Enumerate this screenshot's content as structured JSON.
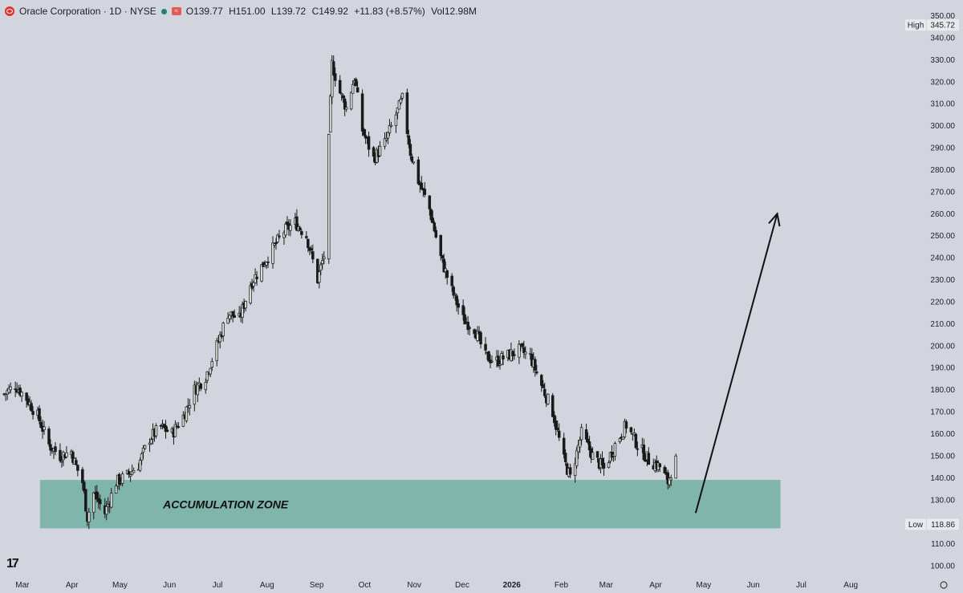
{
  "header": {
    "symbol_label": "Oracle Corporation · 1D · NYSE",
    "open_key": "O",
    "open": "139.77",
    "high_key": "H",
    "high": "151.00",
    "low_key": "L",
    "low": "139.72",
    "close_key": "C",
    "close": "149.92",
    "change": "+11.83 (+8.57%)",
    "vol_key": "Vol",
    "volume": "12.98M"
  },
  "branding": {
    "logo_text": "17"
  },
  "chart_data": {
    "type": "candlestick",
    "title": "Oracle Corporation · 1D · NYSE",
    "ylim": [
      96,
      352
    ],
    "y_ticks": [
      100,
      110,
      120,
      130,
      140,
      150,
      160,
      170,
      180,
      190,
      200,
      210,
      220,
      230,
      240,
      250,
      260,
      270,
      280,
      290,
      300,
      310,
      320,
      330,
      340,
      350
    ],
    "y_tick_labels": [
      "100.00",
      "110.00",
      "120.00",
      "130.00",
      "140.00",
      "150.00",
      "160.00",
      "170.00",
      "180.00",
      "190.00",
      "200.00",
      "210.00",
      "220.00",
      "230.00",
      "240.00",
      "250.00",
      "260.00",
      "270.00",
      "280.00",
      "290.00",
      "300.00",
      "310.00",
      "320.00",
      "330.00",
      "340.00",
      "350.00"
    ],
    "x_range": [
      "2025-02-15",
      "2026-08-30"
    ],
    "x_ticks": [
      {
        "date": "2025-03-01",
        "label": "Mar"
      },
      {
        "date": "2025-04-01",
        "label": "Apr"
      },
      {
        "date": "2025-05-01",
        "label": "May"
      },
      {
        "date": "2025-06-01",
        "label": "Jun"
      },
      {
        "date": "2025-07-01",
        "label": "Jul"
      },
      {
        "date": "2025-08-01",
        "label": "Aug"
      },
      {
        "date": "2025-09-01",
        "label": "Sep"
      },
      {
        "date": "2025-10-01",
        "label": "Oct"
      },
      {
        "date": "2025-11-01",
        "label": "Nov"
      },
      {
        "date": "2025-12-01",
        "label": "Dec"
      },
      {
        "date": "2026-01-01",
        "label": "2026"
      },
      {
        "date": "2026-02-01",
        "label": "Feb"
      },
      {
        "date": "2026-03-01",
        "label": "Mar"
      },
      {
        "date": "2026-04-01",
        "label": "Apr"
      },
      {
        "date": "2026-05-01",
        "label": "May"
      },
      {
        "date": "2026-06-01",
        "label": "Jun"
      },
      {
        "date": "2026-07-01",
        "label": "Jul"
      },
      {
        "date": "2026-08-01",
        "label": "Aug"
      }
    ],
    "high_marker": {
      "label": "High",
      "value": 345.72,
      "value_label": "345.72"
    },
    "low_marker": {
      "label": "Low",
      "value": 118.86,
      "value_label": "118.86"
    },
    "zone": {
      "label": "ACCUMULATION ZONE",
      "y_low": 117,
      "y_high": 139,
      "x_start": "2025-03-12",
      "x_end": "2026-06-18",
      "color": "#7fb5aa"
    },
    "arrow": {
      "from": {
        "date": "2026-04-26",
        "value": 124
      },
      "to": {
        "date": "2026-06-16",
        "value": 260
      }
    },
    "candle_colors": {
      "up": "#d7ddd6",
      "down": "#1a1a1a"
    },
    "closes": [
      [
        "2025-02-17",
        178
      ],
      [
        "2025-02-24",
        182
      ],
      [
        "2025-03-03",
        176
      ],
      [
        "2025-03-10",
        168
      ],
      [
        "2025-03-17",
        155
      ],
      [
        "2025-03-24",
        150
      ],
      [
        "2025-03-31",
        152
      ],
      [
        "2025-04-02",
        147
      ],
      [
        "2025-04-07",
        138
      ],
      [
        "2025-04-10",
        122
      ],
      [
        "2025-04-14",
        133
      ],
      [
        "2025-04-21",
        124
      ],
      [
        "2025-04-28",
        138
      ],
      [
        "2025-05-05",
        141
      ],
      [
        "2025-05-12",
        146
      ],
      [
        "2025-05-19",
        158
      ],
      [
        "2025-05-26",
        163
      ],
      [
        "2025-06-02",
        160
      ],
      [
        "2025-06-09",
        168
      ],
      [
        "2025-06-16",
        180
      ],
      [
        "2025-06-23",
        186
      ],
      [
        "2025-06-30",
        200
      ],
      [
        "2025-07-07",
        215
      ],
      [
        "2025-07-14",
        212
      ],
      [
        "2025-07-21",
        228
      ],
      [
        "2025-07-28",
        236
      ],
      [
        "2025-08-04",
        244
      ],
      [
        "2025-08-11",
        252
      ],
      [
        "2025-08-18",
        256
      ],
      [
        "2025-08-25",
        250
      ],
      [
        "2025-09-01",
        230
      ],
      [
        "2025-09-05",
        241
      ],
      [
        "2025-09-10",
        328
      ],
      [
        "2025-09-15",
        315
      ],
      [
        "2025-09-19",
        308
      ],
      [
        "2025-09-24",
        322
      ],
      [
        "2025-09-29",
        298
      ],
      [
        "2025-10-06",
        285
      ],
      [
        "2025-10-13",
        292
      ],
      [
        "2025-10-20",
        305
      ],
      [
        "2025-10-24",
        312
      ],
      [
        "2025-10-29",
        288
      ],
      [
        "2025-11-03",
        275
      ],
      [
        "2025-11-10",
        262
      ],
      [
        "2025-11-17",
        240
      ],
      [
        "2025-11-24",
        225
      ],
      [
        "2025-12-01",
        212
      ],
      [
        "2025-12-08",
        208
      ],
      [
        "2025-12-15",
        195
      ],
      [
        "2025-12-22",
        193
      ],
      [
        "2026-01-05",
        198
      ],
      [
        "2026-01-12",
        195
      ],
      [
        "2026-01-19",
        182
      ],
      [
        "2026-01-26",
        170
      ],
      [
        "2026-02-02",
        148
      ],
      [
        "2026-02-06",
        140
      ],
      [
        "2026-02-13",
        160
      ],
      [
        "2026-02-20",
        150
      ],
      [
        "2026-02-27",
        144
      ],
      [
        "2026-03-06",
        155
      ],
      [
        "2026-03-13",
        164
      ],
      [
        "2026-03-20",
        155
      ],
      [
        "2026-03-27",
        148
      ],
      [
        "2026-04-03",
        145
      ],
      [
        "2026-04-08",
        138
      ],
      [
        "2026-04-13",
        149.92
      ]
    ]
  }
}
